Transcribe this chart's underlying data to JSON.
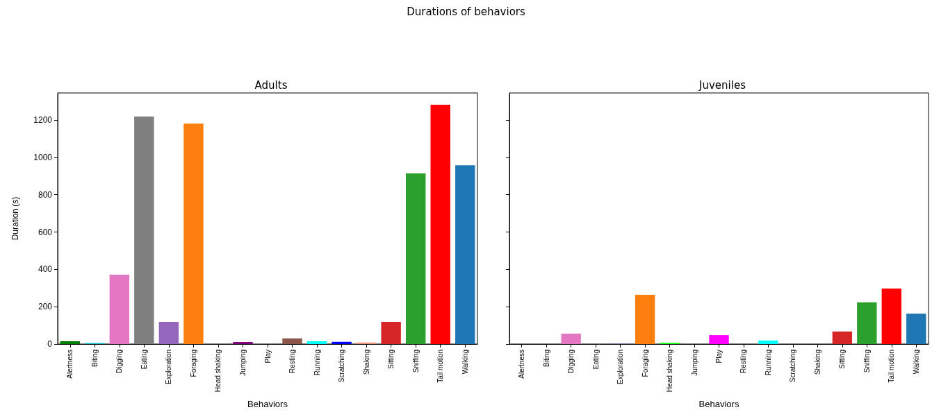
{
  "chart_data": [
    {
      "type": "bar",
      "title": "Adults",
      "annotations": [
        "Durations of behaviors"
      ],
      "xlabel": "Behaviors",
      "ylabel": "Duration (s)",
      "categories": [
        "Alertness",
        "Biting",
        "Digging",
        "Eating",
        "Exploration",
        "Foraging",
        "Head shaking",
        "Jumping",
        "Play",
        "Resting",
        "Running",
        "Scratching",
        "Shaking",
        "Sitting",
        "Sniffing",
        "Tail motion",
        "Walking"
      ],
      "values": [
        15,
        6,
        372,
        1219,
        119,
        1181,
        0,
        11,
        0,
        30,
        15,
        12,
        8,
        119,
        914,
        1282,
        958
      ],
      "colors": [
        "#008000",
        "#17becf",
        "#e377c2",
        "#7f7f7f",
        "#9467bd",
        "#ff7f0e",
        "#00ff00",
        "#800080",
        "#ff00ff",
        "#8c564b",
        "#00ffff",
        "#0000ff",
        "#e9967a",
        "#d62728",
        "#2ca02c",
        "#ff0000",
        "#1f77b4"
      ],
      "ylim": [
        0,
        1345
      ],
      "yticks": [
        0,
        200,
        400,
        600,
        800,
        1000,
        1200
      ],
      "grid": false
    },
    {
      "type": "bar",
      "title": "Juveniles",
      "xlabel": "Behaviors",
      "categories": [
        "Alertness",
        "Biting",
        "Digging",
        "Eating",
        "Exploration",
        "Foraging",
        "Head shaking",
        "Jumping",
        "Play",
        "Resting",
        "Running",
        "Scratching",
        "Shaking",
        "Sitting",
        "Sniffing",
        "Tail motion",
        "Walking"
      ],
      "values": [
        0,
        0,
        56,
        2,
        2,
        264,
        6,
        0,
        48,
        0,
        19,
        0,
        0,
        67,
        223,
        297,
        163
      ],
      "colors": [
        "#008000",
        "#17becf",
        "#e377c2",
        "#7f7f7f",
        "#9467bd",
        "#ff7f0e",
        "#00ff00",
        "#800080",
        "#ff00ff",
        "#8c564b",
        "#00ffff",
        "#0000ff",
        "#e9967a",
        "#d62728",
        "#2ca02c",
        "#ff0000",
        "#1f77b4"
      ],
      "ylim": [
        0,
        1345
      ],
      "yticks": [
        0,
        200,
        400,
        600,
        800,
        1000,
        1200
      ],
      "grid": false,
      "tick_labels": "x"
    }
  ]
}
